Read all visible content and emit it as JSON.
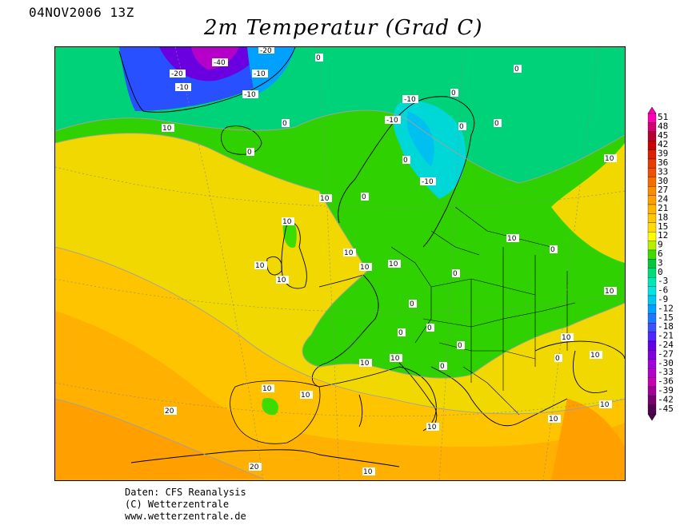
{
  "header": {
    "date": "04NOV2006 13Z",
    "title": "2m Temperatur (Grad C)"
  },
  "credits": {
    "line1": "Daten: CFS Reanalysis",
    "line2": "(C) Wetterzentrale",
    "line3": "www.wetterzentrale.de"
  },
  "legend": {
    "values": [
      "51",
      "48",
      "45",
      "42",
      "39",
      "36",
      "33",
      "30",
      "27",
      "24",
      "21",
      "18",
      "15",
      "12",
      "9",
      "6",
      "3",
      "0",
      "-3",
      "-6",
      "-9",
      "-12",
      "-15",
      "-18",
      "-21",
      "-24",
      "-27",
      "-30",
      "-33",
      "-36",
      "-39",
      "-42",
      "-45"
    ],
    "colors": [
      "#ff00b4",
      "#d2006e",
      "#b40032",
      "#c80000",
      "#dc1e00",
      "#e63c00",
      "#f05000",
      "#f56e00",
      "#fa8c00",
      "#ffa000",
      "#ffb400",
      "#ffc800",
      "#ffdc00",
      "#ffff00",
      "#b4f000",
      "#3cdc00",
      "#00c83c",
      "#00dc78",
      "#00e6b4",
      "#00e6e6",
      "#00c8f0",
      "#00a0ff",
      "#1e78ff",
      "#3c50ff",
      "#5028ff",
      "#6400e6",
      "#8200dc",
      "#a000dc",
      "#b400c8",
      "#c800b4",
      "#a00096",
      "#78006e",
      "#500050"
    ]
  },
  "map_labels": [
    {
      "text": "-40"
    },
    {
      "text": "-20"
    },
    {
      "text": "-20"
    },
    {
      "text": "-10"
    },
    {
      "text": "-10"
    },
    {
      "text": "-10"
    },
    {
      "text": "0"
    },
    {
      "text": "0"
    },
    {
      "text": "0"
    },
    {
      "text": "0"
    },
    {
      "text": "-10"
    },
    {
      "text": "-10"
    },
    {
      "text": "0"
    },
    {
      "text": "0"
    },
    {
      "text": "-10"
    },
    {
      "text": "0"
    },
    {
      "text": "10"
    },
    {
      "text": "10"
    },
    {
      "text": "0"
    },
    {
      "text": "10"
    },
    {
      "text": "10"
    },
    {
      "text": "10"
    },
    {
      "text": "10"
    },
    {
      "text": "0"
    },
    {
      "text": "10"
    },
    {
      "text": "0"
    },
    {
      "text": "0"
    },
    {
      "text": "0"
    },
    {
      "text": "0"
    },
    {
      "text": "0"
    },
    {
      "text": "0"
    },
    {
      "text": "10"
    },
    {
      "text": "10"
    },
    {
      "text": "10"
    },
    {
      "text": "10"
    },
    {
      "text": "0"
    },
    {
      "text": "10"
    },
    {
      "text": "10"
    },
    {
      "text": "10"
    },
    {
      "text": "10"
    },
    {
      "text": "20"
    },
    {
      "text": "10"
    },
    {
      "text": "10"
    },
    {
      "text": "20"
    },
    {
      "text": "10"
    },
    {
      "text": "10"
    },
    {
      "text": "0"
    },
    {
      "text": "10"
    },
    {
      "text": "10"
    }
  ]
}
